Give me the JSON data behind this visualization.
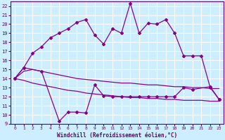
{
  "background_color": "#cceeff",
  "grid_color": "#ffffff",
  "line_color": "#880088",
  "xlabel": "Windchill (Refroidissement éolien,°C)",
  "xlim": [
    -0.5,
    23.5
  ],
  "ylim": [
    9,
    22.5
  ],
  "xticks": [
    0,
    1,
    2,
    3,
    4,
    5,
    6,
    7,
    8,
    9,
    10,
    11,
    12,
    13,
    14,
    15,
    16,
    17,
    18,
    19,
    20,
    21,
    22,
    23
  ],
  "yticks": [
    9,
    10,
    11,
    12,
    13,
    14,
    15,
    16,
    17,
    18,
    19,
    20,
    21,
    22
  ],
  "upper_x": [
    0,
    1,
    2,
    3,
    4,
    5,
    6,
    7,
    8,
    9,
    10,
    11,
    12,
    13,
    14,
    15,
    16,
    17,
    18,
    19,
    20,
    21,
    22,
    23
  ],
  "upper_y": [
    14.0,
    15.2,
    16.8,
    17.5,
    18.5,
    19.0,
    19.5,
    20.2,
    20.5,
    18.8,
    17.8,
    19.5,
    19.0,
    22.3,
    19.0,
    20.1,
    20.0,
    20.5,
    19.0,
    16.5,
    16.5,
    16.5,
    13.0,
    11.7
  ],
  "lower_x": [
    0,
    1,
    3,
    5,
    6,
    7,
    8,
    9,
    10,
    11,
    12,
    13,
    14,
    15,
    16,
    17,
    18,
    19,
    20,
    22,
    23
  ],
  "lower_y": [
    14.0,
    15.2,
    14.8,
    9.3,
    10.3,
    10.3,
    10.2,
    13.3,
    12.1,
    12.0,
    12.0,
    12.0,
    12.0,
    12.0,
    12.0,
    12.0,
    12.0,
    13.0,
    12.8,
    13.1,
    11.7
  ],
  "reg_low_x": [
    0,
    1,
    2,
    3,
    4,
    5,
    6,
    7,
    8,
    9,
    10,
    11,
    12,
    13,
    14,
    15,
    16,
    17,
    18,
    19,
    20,
    21,
    22,
    23
  ],
  "reg_low_y": [
    14.0,
    13.8,
    13.5,
    13.3,
    13.1,
    12.9,
    12.7,
    12.6,
    12.4,
    12.3,
    12.2,
    12.1,
    12.0,
    11.9,
    11.9,
    11.8,
    11.8,
    11.7,
    11.7,
    11.6,
    11.6,
    11.6,
    11.5,
    11.5
  ],
  "reg_high_x": [
    0,
    1,
    2,
    3,
    4,
    5,
    6,
    7,
    8,
    9,
    10,
    11,
    12,
    13,
    14,
    15,
    16,
    17,
    18,
    19,
    20,
    21,
    22,
    23
  ],
  "reg_high_y": [
    14.0,
    14.8,
    15.0,
    14.8,
    14.6,
    14.4,
    14.2,
    14.0,
    13.9,
    13.8,
    13.7,
    13.6,
    13.5,
    13.5,
    13.4,
    13.3,
    13.3,
    13.2,
    13.1,
    13.1,
    13.0,
    13.0,
    12.9,
    12.9
  ]
}
